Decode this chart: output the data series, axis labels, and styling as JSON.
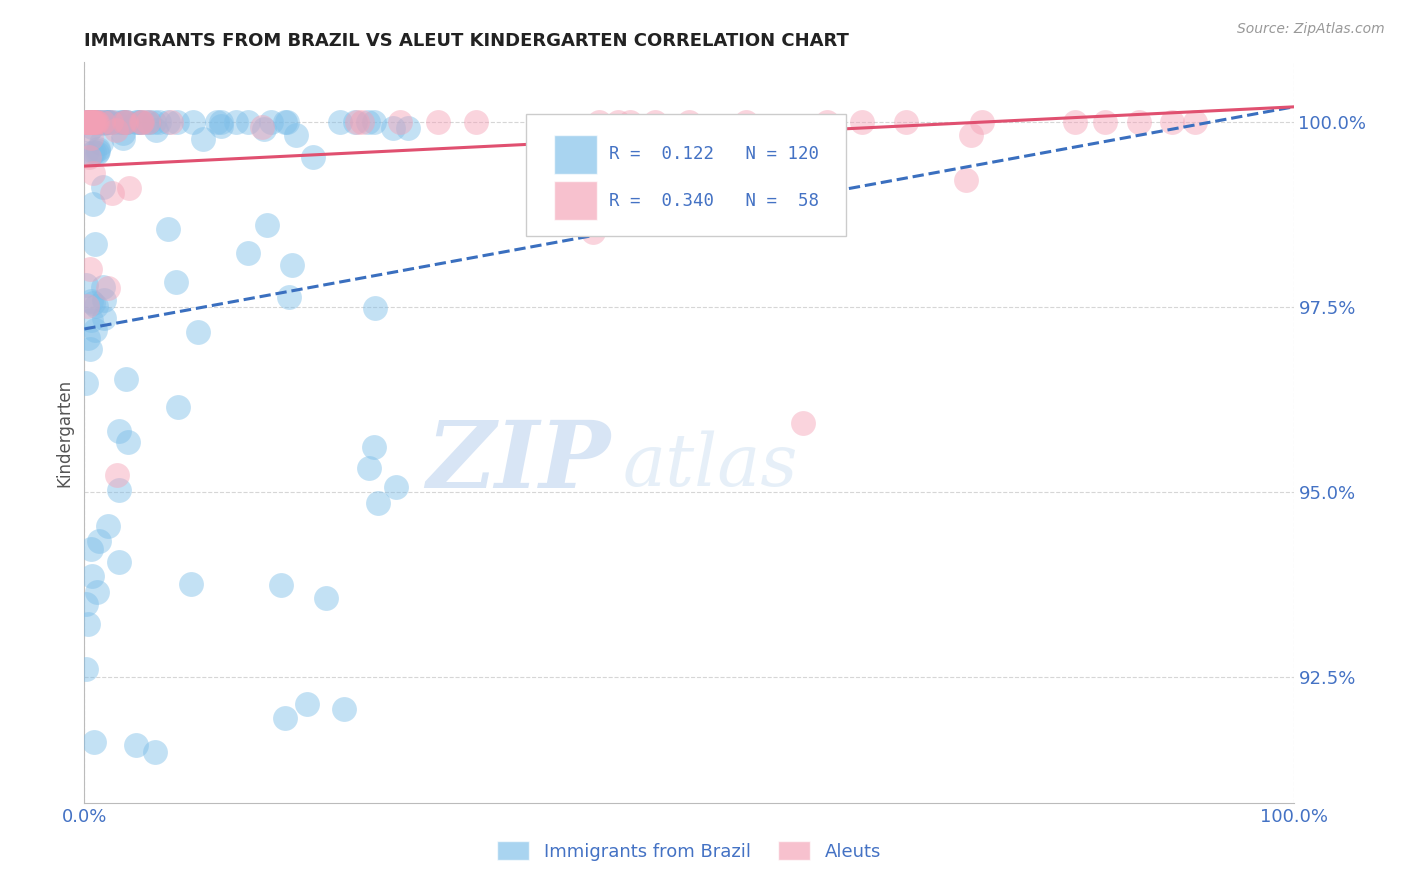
{
  "title": "IMMIGRANTS FROM BRAZIL VS ALEUT KINDERGARTEN CORRELATION CHART",
  "source_text": "Source: ZipAtlas.com",
  "ylabel": "Kindergarten",
  "xlim": [
    0.0,
    1.0
  ],
  "ylim": [
    0.908,
    1.008
  ],
  "yticks": [
    0.925,
    0.95,
    0.975,
    1.0
  ],
  "ytick_labels": [
    "92.5%",
    "95.0%",
    "97.5%",
    "100.0%"
  ],
  "brazil_R": 0.122,
  "brazil_N": 120,
  "aleut_R": 0.34,
  "aleut_N": 58,
  "brazil_color": "#7bbde8",
  "aleut_color": "#f4a0b5",
  "brazil_line_color": "#3a6fbf",
  "aleut_line_color": "#e05070",
  "background_color": "#ffffff",
  "grid_color": "#cccccc",
  "title_color": "#222222",
  "axis_label_color": "#555555",
  "tick_color": "#4472c4",
  "legend_label_color": "#4472c4",
  "watermark_zip": "ZIP",
  "watermark_atlas": "atlas",
  "brazil_line_x0": 0.0,
  "brazil_line_y0": 0.972,
  "brazil_line_x1": 1.0,
  "brazil_line_y1": 1.002,
  "aleut_line_x0": 0.0,
  "aleut_line_y0": 0.994,
  "aleut_line_x1": 1.0,
  "aleut_line_y1": 1.002
}
